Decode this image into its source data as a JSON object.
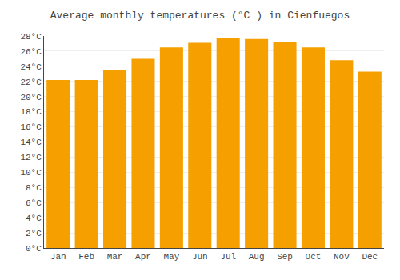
{
  "chart_data": {
    "type": "bar",
    "title": "Average monthly temperatures (°C ) in Cienfuegos",
    "categories": [
      "Jan",
      "Feb",
      "Mar",
      "Apr",
      "May",
      "Jun",
      "Jul",
      "Aug",
      "Sep",
      "Oct",
      "Nov",
      "Dec"
    ],
    "values": [
      22.2,
      22.2,
      23.5,
      25.0,
      26.5,
      27.1,
      27.7,
      27.6,
      27.2,
      26.5,
      24.8,
      23.3
    ],
    "color": "#F5A000",
    "ylim": [
      0,
      28
    ],
    "yticks": [
      {
        "value": 0,
        "label": "0°C"
      },
      {
        "value": 2,
        "label": "2°C"
      },
      {
        "value": 4,
        "label": "4°C"
      },
      {
        "value": 6,
        "label": "6°C"
      },
      {
        "value": 8,
        "label": "8°C"
      },
      {
        "value": 10,
        "label": "10°C"
      },
      {
        "value": 12,
        "label": "12°C"
      },
      {
        "value": 14,
        "label": "14°C"
      },
      {
        "value": 16,
        "label": "16°C"
      },
      {
        "value": 18,
        "label": "18°C"
      },
      {
        "value": 20,
        "label": "20°C"
      },
      {
        "value": 22,
        "label": "22°C"
      },
      {
        "value": 24,
        "label": "24°C"
      },
      {
        "value": 26,
        "label": "26°C"
      },
      {
        "value": 28,
        "label": "28°C"
      }
    ],
    "grid": true
  }
}
